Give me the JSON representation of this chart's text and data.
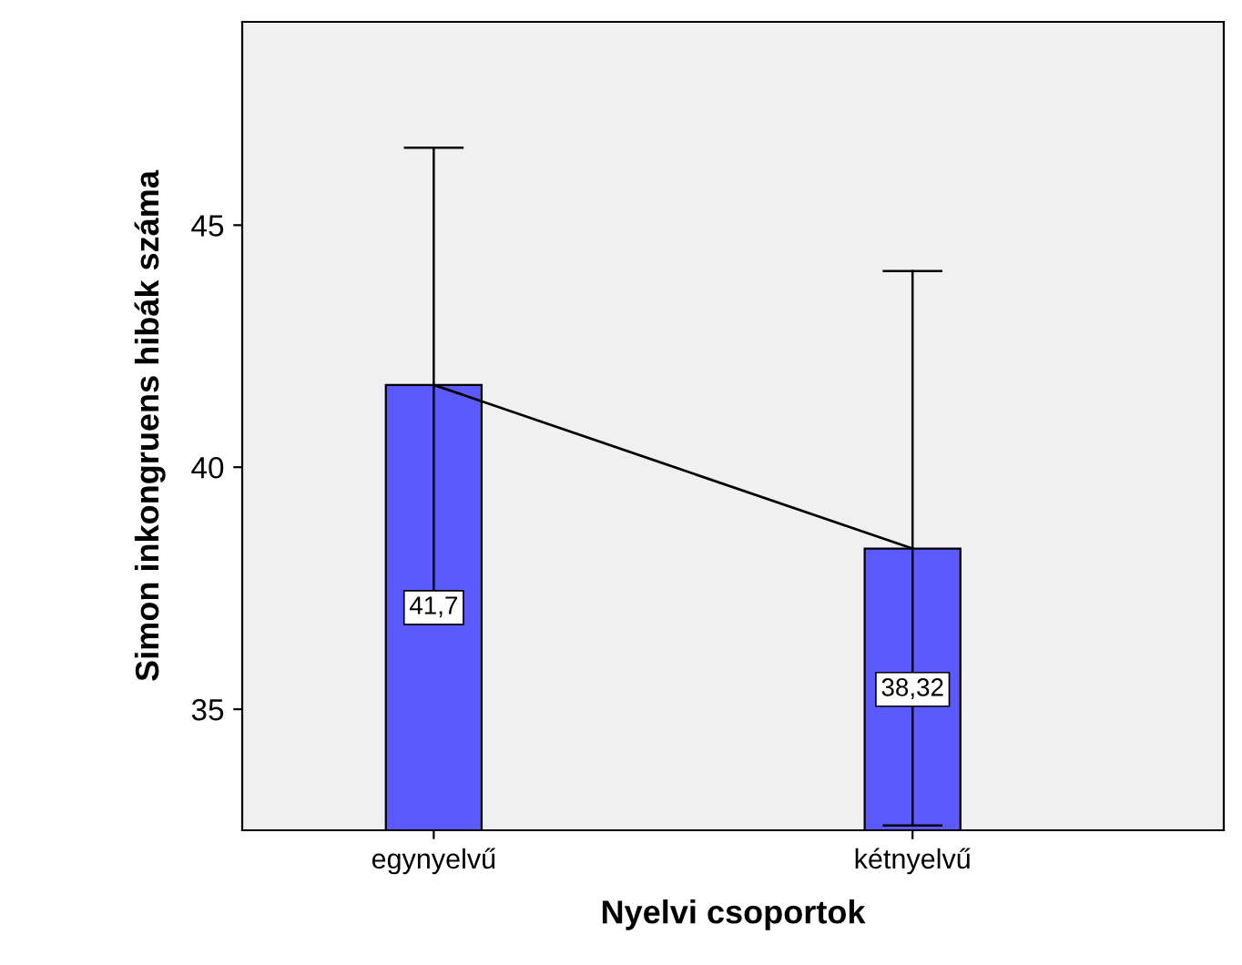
{
  "chart_data": {
    "type": "bar",
    "xlabel": "Nyelvi csoportok",
    "ylabel": "Simon inkongruens hibák száma",
    "categories": [
      "egynyelvű",
      "kétnyelvű"
    ],
    "series": [
      {
        "color": "#5a5aff",
        "values": [
          41.7,
          38.32
        ],
        "value_labels": [
          "41,7",
          "38,32"
        ],
        "errors": [
          [
            36.85,
            46.6
          ],
          [
            32.6,
            44.05
          ]
        ]
      },
      {
        "type": "line",
        "color": "#000000",
        "values": [
          41.7,
          38.32
        ]
      }
    ],
    "ylim": [
      32.5,
      49.2
    ],
    "yticks": [
      35,
      40,
      45
    ],
    "grid": false,
    "legend": false
  }
}
